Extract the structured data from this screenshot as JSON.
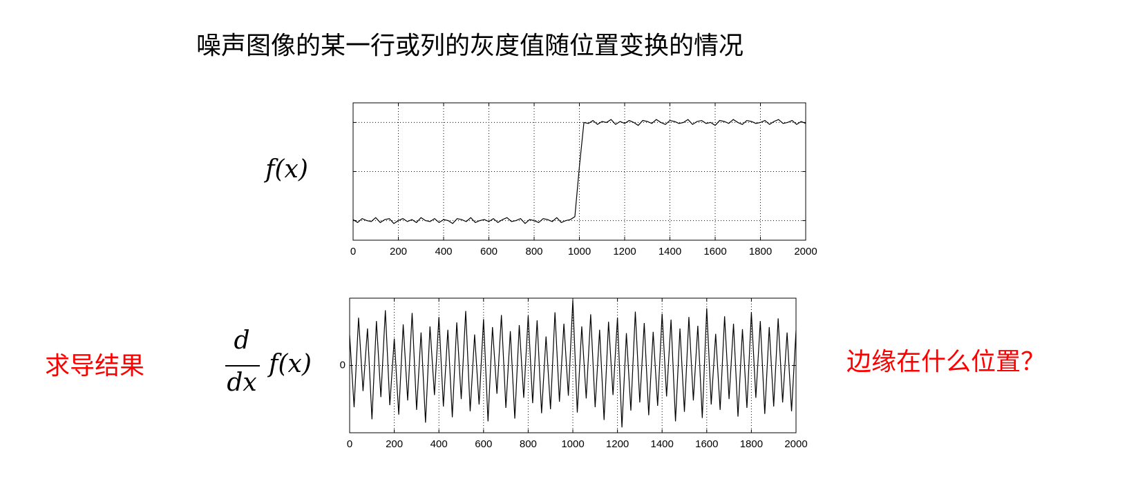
{
  "title": "噪声图像的某一行或列的灰度值随位置变换的情况",
  "left_label": "求导结果",
  "right_question": "边缘在什么位置？",
  "chart_data": [
    {
      "type": "line",
      "ylabel": "f(x)",
      "color": "#000000",
      "grid": true,
      "ytick_labels": false,
      "xlim": [
        0,
        2000
      ],
      "xticks": [
        0,
        200,
        400,
        600,
        800,
        1000,
        1200,
        1400,
        1600,
        1800,
        2000
      ],
      "ylim": [
        -0.2,
        1.2
      ],
      "yticks": [
        0,
        0.5,
        1
      ],
      "x": [
        0,
        20,
        40,
        60,
        80,
        100,
        120,
        140,
        160,
        180,
        200,
        220,
        240,
        260,
        280,
        300,
        320,
        340,
        360,
        380,
        400,
        420,
        440,
        460,
        480,
        500,
        520,
        540,
        560,
        580,
        600,
        620,
        640,
        660,
        680,
        700,
        720,
        740,
        760,
        780,
        800,
        820,
        840,
        860,
        880,
        900,
        920,
        940,
        960,
        980,
        1000,
        1020,
        1040,
        1060,
        1080,
        1100,
        1120,
        1140,
        1160,
        1180,
        1200,
        1220,
        1240,
        1260,
        1280,
        1300,
        1320,
        1340,
        1360,
        1380,
        1400,
        1420,
        1440,
        1460,
        1480,
        1500,
        1520,
        1540,
        1560,
        1580,
        1600,
        1620,
        1640,
        1660,
        1680,
        1700,
        1720,
        1740,
        1760,
        1780,
        1800,
        1820,
        1840,
        1860,
        1880,
        1900,
        1920,
        1940,
        1960,
        1980,
        2000
      ],
      "values": [
        0.01,
        -0.02,
        0.02,
        0.0,
        -0.01,
        0.03,
        -0.02,
        0.01,
        0.02,
        -0.03,
        0.0,
        0.02,
        -0.01,
        0.01,
        -0.02,
        0.03,
        0.0,
        -0.01,
        0.02,
        -0.02,
        0.01,
        0.0,
        -0.03,
        0.02,
        0.01,
        -0.01,
        0.03,
        -0.02,
        0.0,
        0.01,
        -0.01,
        0.02,
        -0.02,
        0.01,
        0.03,
        -0.01,
        0.0,
        0.02,
        -0.03,
        0.01,
        0.0,
        -0.02,
        0.02,
        0.01,
        -0.01,
        0.03,
        -0.02,
        0.0,
        0.01,
        0.04,
        0.55,
        1.0,
        0.99,
        1.02,
        0.98,
        1.01,
        1.0,
        1.03,
        0.98,
        1.01,
        0.99,
        1.02,
        1.0,
        0.97,
        1.02,
        1.01,
        0.99,
        1.03,
        1.0,
        0.98,
        1.02,
        1.01,
        0.99,
        1.0,
        1.03,
        0.98,
        1.01,
        1.02,
        0.99,
        1.0,
        0.97,
        1.02,
        1.01,
        0.99,
        1.03,
        1.0,
        0.98,
        1.02,
        1.01,
        0.99,
        1.0,
        1.02,
        0.98,
        1.01,
        1.03,
        0.99,
        1.0,
        1.02,
        0.98,
        1.01,
        0.99
      ]
    },
    {
      "type": "line",
      "ylabel": {
        "numerator": "d",
        "denominator": "dx",
        "function": "f(x)"
      },
      "color": "#000000",
      "grid": true,
      "ytick_labels": true,
      "xlim": [
        0,
        2000
      ],
      "xticks": [
        0,
        200,
        400,
        600,
        800,
        1000,
        1200,
        1400,
        1600,
        1800,
        2000
      ],
      "ylim": [
        -1,
        1
      ],
      "yticks": [
        0
      ],
      "x": [
        0,
        20,
        40,
        60,
        80,
        100,
        120,
        140,
        160,
        180,
        200,
        220,
        240,
        260,
        280,
        300,
        320,
        340,
        360,
        380,
        400,
        420,
        440,
        460,
        480,
        500,
        520,
        540,
        560,
        580,
        600,
        620,
        640,
        660,
        680,
        700,
        720,
        740,
        760,
        780,
        800,
        820,
        840,
        860,
        880,
        900,
        920,
        940,
        960,
        980,
        1000,
        1020,
        1040,
        1060,
        1080,
        1100,
        1120,
        1140,
        1160,
        1180,
        1200,
        1220,
        1240,
        1260,
        1280,
        1300,
        1320,
        1340,
        1360,
        1380,
        1400,
        1420,
        1440,
        1460,
        1480,
        1500,
        1520,
        1540,
        1560,
        1580,
        1600,
        1620,
        1640,
        1660,
        1680,
        1700,
        1720,
        1740,
        1760,
        1780,
        1800,
        1820,
        1840,
        1860,
        1880,
        1900,
        1920,
        1940,
        1960,
        1980,
        2000
      ],
      "values": [
        0.45,
        -0.62,
        0.71,
        -0.38,
        0.55,
        -0.8,
        0.66,
        -0.47,
        0.82,
        -0.59,
        0.4,
        -0.73,
        0.61,
        -0.52,
        0.78,
        -0.66,
        0.49,
        -0.85,
        0.58,
        -0.44,
        0.72,
        -0.61,
        0.53,
        -0.77,
        0.64,
        -0.5,
        0.81,
        -0.68,
        0.46,
        -0.58,
        0.69,
        -0.83,
        0.57,
        -0.42,
        0.75,
        -0.63,
        0.51,
        -0.79,
        0.6,
        -0.48,
        0.74,
        -0.56,
        0.67,
        -0.71,
        0.43,
        -0.65,
        0.79,
        -0.54,
        0.62,
        -0.45,
        0.97,
        -0.7,
        0.58,
        -0.49,
        0.76,
        -0.62,
        0.53,
        -0.81,
        0.65,
        -0.44,
        0.71,
        -0.92,
        0.48,
        -0.67,
        0.8,
        -0.55,
        0.63,
        -0.74,
        0.5,
        -0.6,
        0.77,
        -0.46,
        0.68,
        -0.83,
        0.55,
        -0.69,
        0.72,
        -0.52,
        0.59,
        -0.78,
        0.85,
        -0.58,
        0.47,
        -0.66,
        0.73,
        -0.5,
        0.62,
        -0.76,
        0.54,
        -0.63,
        0.79,
        -0.48,
        0.66,
        -0.72,
        0.57,
        -0.61,
        0.7,
        -0.55,
        0.49,
        -0.68,
        0.52
      ]
    }
  ]
}
